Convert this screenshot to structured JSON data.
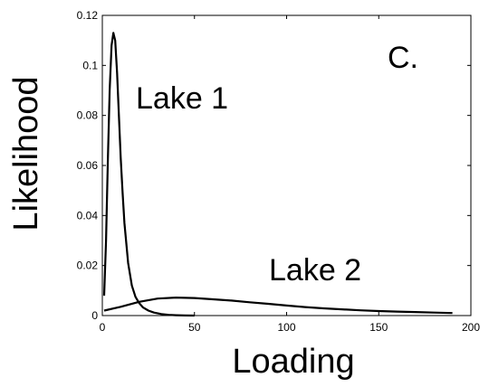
{
  "chart_data": {
    "type": "line",
    "xlabel": "Loading",
    "ylabel": "Likelihood",
    "xlim": [
      0,
      200
    ],
    "ylim": [
      0,
      0.12
    ],
    "x_ticks": [
      "0",
      "50",
      "100",
      "150",
      "200"
    ],
    "y_ticks": [
      "0",
      "0.02",
      "0.04",
      "0.06",
      "0.08",
      "0.1",
      "0.12"
    ],
    "x_tick_values": [
      0,
      50,
      100,
      150,
      200
    ],
    "y_tick_values": [
      0,
      0.02,
      0.04,
      0.06,
      0.08,
      0.1,
      0.12
    ],
    "grid": false,
    "annotations": [
      "C.",
      "Lake 1",
      "Lake 2"
    ],
    "series": [
      {
        "name": "Lake 1",
        "color": "#000000",
        "x": [
          1,
          2,
          3,
          4,
          5,
          6,
          7,
          8,
          9,
          10,
          11,
          12,
          14,
          16,
          18,
          20,
          22,
          25,
          28,
          32,
          36,
          40,
          45,
          50
        ],
        "y": [
          0.008,
          0.03,
          0.062,
          0.09,
          0.108,
          0.113,
          0.11,
          0.097,
          0.08,
          0.063,
          0.049,
          0.037,
          0.021,
          0.012,
          0.0075,
          0.005,
          0.0033,
          0.002,
          0.0012,
          0.0006,
          0.0003,
          0.00015,
          5e-05,
          0.0
        ]
      },
      {
        "name": "Lake 2",
        "color": "#000000",
        "x": [
          1,
          10,
          20,
          30,
          40,
          50,
          60,
          70,
          80,
          90,
          100,
          110,
          120,
          130,
          140,
          150,
          160,
          170,
          180,
          190
        ],
        "y": [
          0.002,
          0.0035,
          0.0055,
          0.0068,
          0.0072,
          0.007,
          0.0065,
          0.006,
          0.0053,
          0.0047,
          0.004,
          0.0034,
          0.0029,
          0.0025,
          0.0021,
          0.0018,
          0.0016,
          0.0014,
          0.0012,
          0.001
        ]
      }
    ]
  }
}
